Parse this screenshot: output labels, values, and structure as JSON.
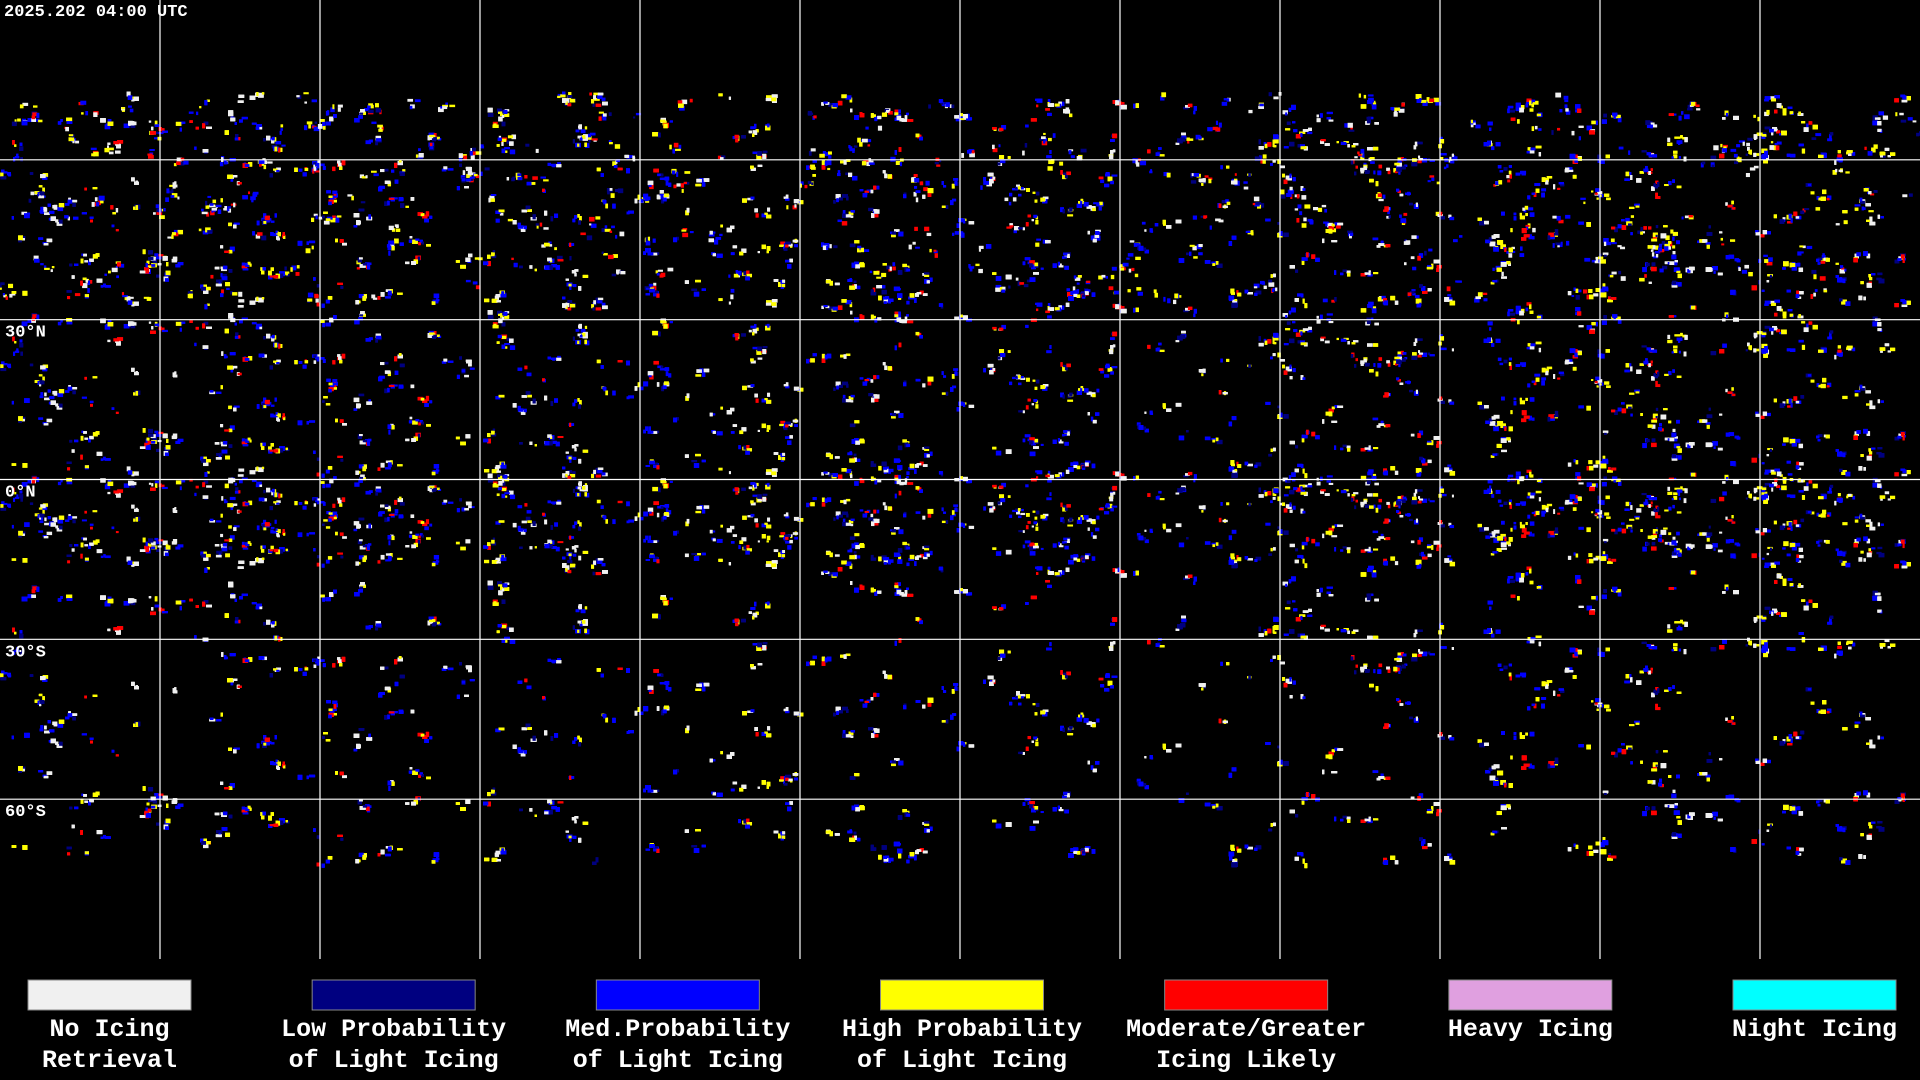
{
  "header": {
    "timestamp": "2025.202 04:00 UTC"
  },
  "grid": {
    "lat_labels": [
      "30°N",
      "0°N",
      "30°S",
      "60°S"
    ]
  },
  "legend": [
    {
      "color": "#f0f0f0",
      "lines": [
        "No Icing",
        "Retrieval"
      ]
    },
    {
      "color": "#000080",
      "lines": [
        "Low Probability",
        "of Light Icing"
      ]
    },
    {
      "color": "#0000ff",
      "lines": [
        "Med.Probability",
        "of Light Icing"
      ]
    },
    {
      "color": "#ffff00",
      "lines": [
        "High Probability",
        "of Light Icing"
      ]
    },
    {
      "color": "#ff0000",
      "lines": [
        "Moderate/Greater",
        "Icing Likely"
      ]
    },
    {
      "color": "#e0a0e0",
      "lines": [
        "Heavy Icing"
      ]
    },
    {
      "color": "#00ffff",
      "lines": [
        "Night Icing"
      ]
    }
  ]
}
